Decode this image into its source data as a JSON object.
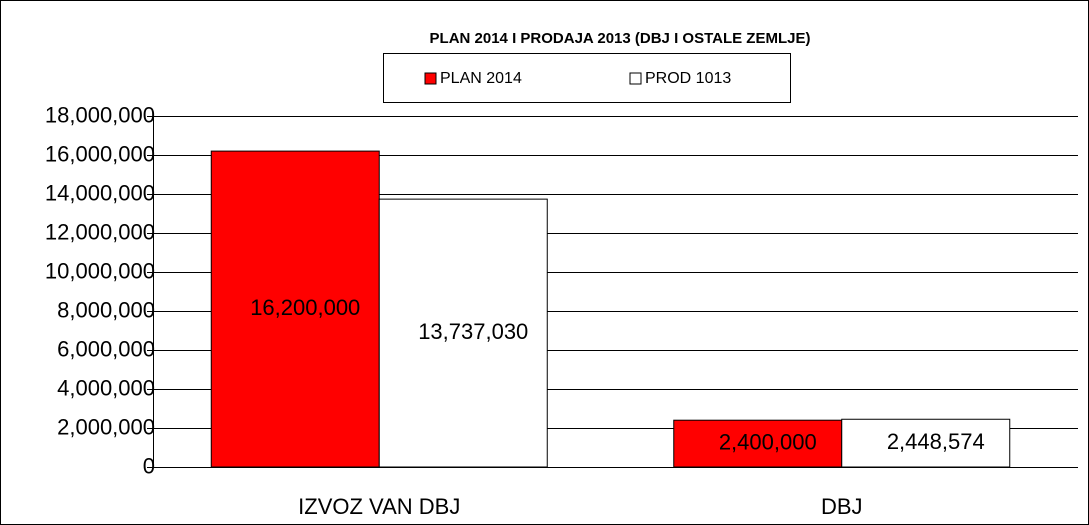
{
  "chart_data": {
    "type": "bar",
    "title": "PLAN 2014 I PRODAJA 2013 (DBJ I OSTALE ZEMLJE)",
    "categories": [
      "IZVOZ VAN DBJ",
      "DBJ"
    ],
    "series": [
      {
        "name": "PLAN 2014",
        "color": "#ff0000",
        "values": [
          16200000,
          2400000
        ],
        "value_labels": [
          "16,200,000",
          "2,400,000"
        ]
      },
      {
        "name": "PROD 1013",
        "color": "#ffffff",
        "values": [
          13737030,
          2448574
        ],
        "value_labels": [
          "13,737,030",
          "2,448,574"
        ]
      }
    ],
    "ylim": [
      0,
      18000000
    ],
    "yticks": [
      0,
      {
        "value": 2000000,
        "label": "2,000,000"
      },
      {
        "value": 4000000,
        "label": "4,000,000"
      },
      {
        "value": 6000000,
        "label": "6,000,000"
      },
      {
        "value": 8000000,
        "label": "8,000,000"
      },
      {
        "value": 10000000,
        "label": "10,000,000"
      },
      {
        "value": 12000000,
        "label": "12,000,000"
      },
      {
        "value": 14000000,
        "label": "14,000,000"
      },
      {
        "value": 16000000,
        "label": "16,000,000"
      },
      {
        "value": 18000000,
        "label": "18,000,000"
      }
    ],
    "grid": true,
    "legend": "top"
  }
}
